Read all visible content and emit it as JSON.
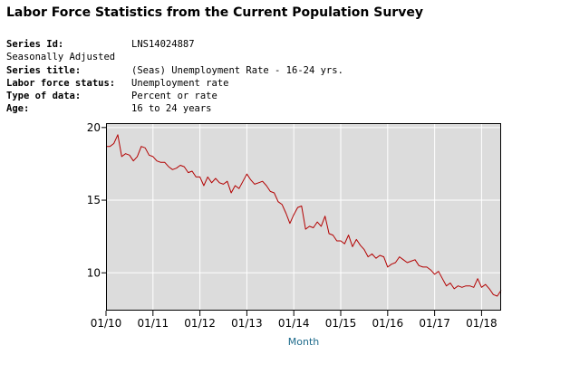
{
  "page_title": "Labor Force Statistics from the Current Population Survey",
  "series_info": [
    {
      "label": "Series Id:",
      "value": "LNS14024887",
      "bold": true
    },
    {
      "label": "Seasonally Adjusted",
      "value": "",
      "bold": false
    },
    {
      "label": "Series title:",
      "value": "(Seas) Unemployment Rate - 16-24 yrs.",
      "bold": true
    },
    {
      "label": "Labor force status:",
      "value": "Unemployment rate",
      "bold": true
    },
    {
      "label": "Type of data:",
      "value": "Percent or rate",
      "bold": true
    },
    {
      "label": "Age:",
      "value": "16 to 24 years",
      "bold": true
    }
  ],
  "chart_data": {
    "type": "line",
    "title": "",
    "xlabel": "Month",
    "ylabel": "",
    "ylim": [
      7.4,
      20.3
    ],
    "y_ticks": [
      10,
      15,
      20
    ],
    "x_ticks": [
      "01/10",
      "01/11",
      "01/12",
      "01/13",
      "01/14",
      "01/15",
      "01/16",
      "01/17",
      "01/18"
    ],
    "grid": true,
    "plot_background": "#dcdcdc",
    "line_color": "#b30000",
    "start": "2010-01",
    "end": "2018-06",
    "x": [
      "2010-01",
      "2010-02",
      "2010-03",
      "2010-04",
      "2010-05",
      "2010-06",
      "2010-07",
      "2010-08",
      "2010-09",
      "2010-10",
      "2010-11",
      "2010-12",
      "2011-01",
      "2011-02",
      "2011-03",
      "2011-04",
      "2011-05",
      "2011-06",
      "2011-07",
      "2011-08",
      "2011-09",
      "2011-10",
      "2011-11",
      "2011-12",
      "2012-01",
      "2012-02",
      "2012-03",
      "2012-04",
      "2012-05",
      "2012-06",
      "2012-07",
      "2012-08",
      "2012-09",
      "2012-10",
      "2012-11",
      "2012-12",
      "2013-01",
      "2013-02",
      "2013-03",
      "2013-04",
      "2013-05",
      "2013-06",
      "2013-07",
      "2013-08",
      "2013-09",
      "2013-10",
      "2013-11",
      "2013-12",
      "2014-01",
      "2014-02",
      "2014-03",
      "2014-04",
      "2014-05",
      "2014-06",
      "2014-07",
      "2014-08",
      "2014-09",
      "2014-10",
      "2014-11",
      "2014-12",
      "2015-01",
      "2015-02",
      "2015-03",
      "2015-04",
      "2015-05",
      "2015-06",
      "2015-07",
      "2015-08",
      "2015-09",
      "2015-10",
      "2015-11",
      "2015-12",
      "2016-01",
      "2016-02",
      "2016-03",
      "2016-04",
      "2016-05",
      "2016-06",
      "2016-07",
      "2016-08",
      "2016-09",
      "2016-10",
      "2016-11",
      "2016-12",
      "2017-01",
      "2017-02",
      "2017-03",
      "2017-04",
      "2017-05",
      "2017-06",
      "2017-07",
      "2017-08",
      "2017-09",
      "2017-10",
      "2017-11",
      "2017-12",
      "2018-01",
      "2018-02",
      "2018-03",
      "2018-04",
      "2018-05",
      "2018-06"
    ],
    "values": [
      18.7,
      18.7,
      18.9,
      19.5,
      18.0,
      18.2,
      18.1,
      17.7,
      18.0,
      18.7,
      18.6,
      18.1,
      18.0,
      17.7,
      17.6,
      17.6,
      17.3,
      17.1,
      17.2,
      17.4,
      17.3,
      16.9,
      17.0,
      16.6,
      16.6,
      16.0,
      16.6,
      16.2,
      16.5,
      16.2,
      16.1,
      16.3,
      15.5,
      16.0,
      15.8,
      16.3,
      16.8,
      16.4,
      16.1,
      16.2,
      16.3,
      16.0,
      15.6,
      15.5,
      14.9,
      14.7,
      14.1,
      13.4,
      14.0,
      14.5,
      14.6,
      13.0,
      13.2,
      13.1,
      13.5,
      13.2,
      13.9,
      12.7,
      12.6,
      12.2,
      12.2,
      12.0,
      12.6,
      11.8,
      12.3,
      11.9,
      11.6,
      11.1,
      11.3,
      11.0,
      11.2,
      11.1,
      10.4,
      10.6,
      10.7,
      11.1,
      10.9,
      10.7,
      10.8,
      10.9,
      10.5,
      10.4,
      10.4,
      10.2,
      9.9,
      10.1,
      9.6,
      9.1,
      9.3,
      8.9,
      9.1,
      9.0,
      9.1,
      9.1,
      9.0,
      9.6,
      9.0,
      9.2,
      8.9,
      8.5,
      8.4,
      8.8
    ]
  }
}
